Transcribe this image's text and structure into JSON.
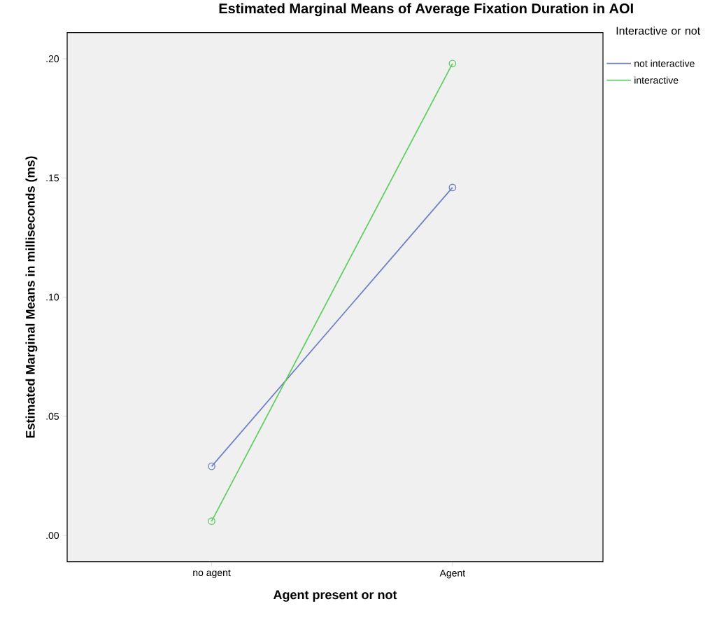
{
  "chart_data": {
    "type": "line",
    "title": "Estimated Marginal Means of Average Fixation Duration in AOI",
    "xlabel": "Agent present or not",
    "ylabel": "Estimated Marginal Means in milliseconds (ms)",
    "legend_title": "Interactive or not",
    "categories": [
      "no agent",
      "Agent"
    ],
    "series": [
      {
        "name": "not interactive",
        "color": "#6f7fc4",
        "values": [
          0.029,
          0.146
        ]
      },
      {
        "name": "interactive",
        "color": "#5fce5f",
        "values": [
          0.006,
          0.198
        ]
      }
    ],
    "ylim": [
      -0.011,
      0.211
    ],
    "yticks": [
      {
        "value": 0,
        "label": ".00"
      },
      {
        "value": 0.05,
        "label": ".05"
      },
      {
        "value": 0.1,
        "label": ".10"
      },
      {
        "value": 0.15,
        "label": ".15"
      },
      {
        "value": 0.2,
        "label": ".20"
      }
    ],
    "grid": false,
    "legend": "top right",
    "marker": "circle",
    "line_style": "solid"
  }
}
